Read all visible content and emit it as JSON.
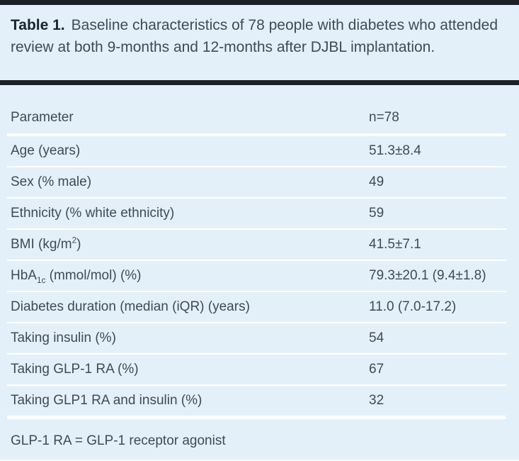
{
  "title": {
    "label": "Table 1.",
    "text": "Baseline characteristics of 78 people with diabetes who attended review at both 9-months and 12-months after DJBL implantation."
  },
  "table": {
    "columns": {
      "parameter": "Parameter",
      "value": "n=78"
    },
    "rows": [
      {
        "parameter": [
          {
            "t": "Age (years)"
          }
        ],
        "value": "51.3±8.4"
      },
      {
        "parameter": [
          {
            "t": "Sex (% male)"
          }
        ],
        "value": "49"
      },
      {
        "parameter": [
          {
            "t": "Ethnicity (% white ethnicity)"
          }
        ],
        "value": "59"
      },
      {
        "parameter": [
          {
            "t": "BMI (kg/m"
          },
          {
            "t": "2",
            "sup": true
          },
          {
            "t": ")"
          }
        ],
        "value": "41.5±7.1"
      },
      {
        "parameter": [
          {
            "t": "HbA"
          },
          {
            "t": "1c",
            "sub": true
          },
          {
            "t": " (mmol/mol) (%)"
          }
        ],
        "value": "79.3±20.1 (9.4±1.8)"
      },
      {
        "parameter": [
          {
            "t": "Diabetes duration (median (iQR) (years)"
          }
        ],
        "value": "11.0 (7.0-17.2)"
      },
      {
        "parameter": [
          {
            "t": "Taking insulin (%)"
          }
        ],
        "value": "54"
      },
      {
        "parameter": [
          {
            "t": "Taking GLP-1 RA (%)"
          }
        ],
        "value": "67"
      },
      {
        "parameter": [
          {
            "t": "Taking GLP1 RA and insulin (%)"
          }
        ],
        "value": "32"
      }
    ],
    "footnote": "GLP-1 RA = GLP-1 receptor agonist"
  },
  "colors": {
    "background": "#e3f0f9",
    "rule": "#1d2125",
    "separator": "#ffffff",
    "text": "#3f4a55",
    "title_bold": "#1a2330"
  }
}
